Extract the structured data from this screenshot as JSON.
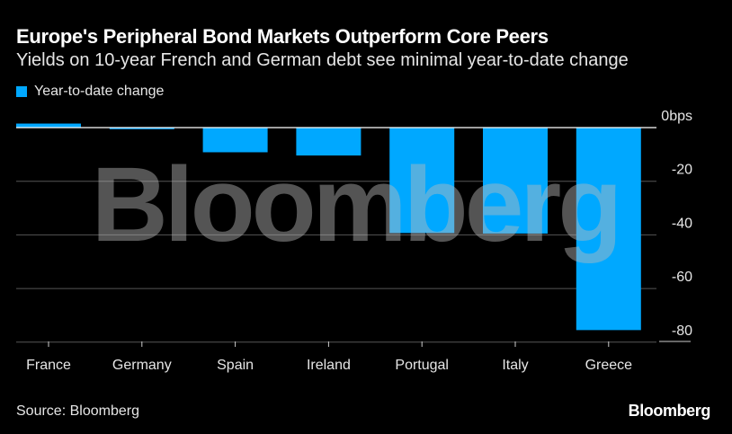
{
  "chart_data": {
    "type": "bar",
    "title": "Europe's Peripheral Bond Markets Outperform Core Peers",
    "subtitle": "Yields on 10-year French and German debt see minimal year-to-date change",
    "categories": [
      "France",
      "Germany",
      "Spain",
      "Ireland",
      "Portugal",
      "Italy",
      "Greece"
    ],
    "series": [
      {
        "name": "Year-to-date change",
        "values": [
          1.5,
          -0.6,
          -9.2,
          -10.4,
          -39.3,
          -39.5,
          -75.5
        ]
      }
    ],
    "yticks": [
      0,
      -20,
      -40,
      -60,
      -80
    ],
    "ytick_labels": [
      "0bps",
      "-20",
      "-40",
      "-60",
      "-80"
    ],
    "ylim": [
      -80,
      2
    ],
    "xlabel": "",
    "ylabel": "",
    "legend_position": "top-left",
    "bar_color": "#00a8ff",
    "grid": true
  },
  "source": "Source: Bloomberg",
  "brand": "Bloomberg",
  "watermark": "Bloomberg"
}
